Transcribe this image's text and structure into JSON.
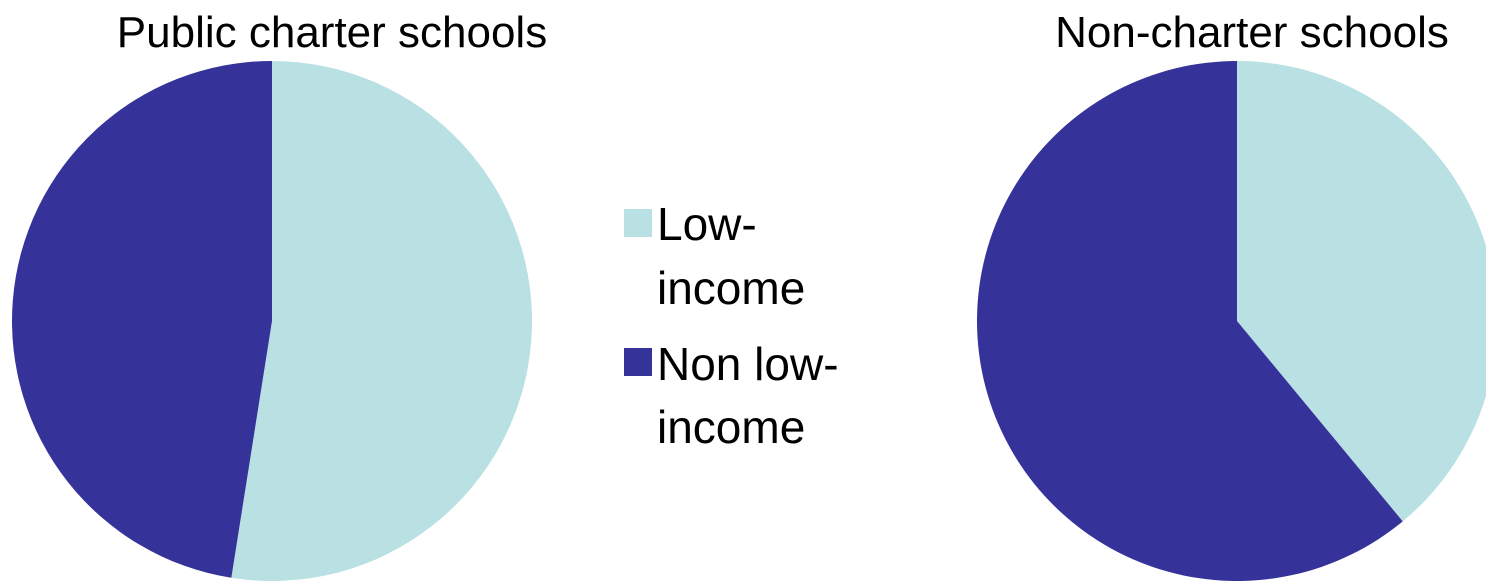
{
  "chart_data": [
    {
      "type": "pie",
      "title": "Public charter schools",
      "slices": [
        {
          "label": "Low-income",
          "value": 52.5,
          "color": "#b9e0e2"
        },
        {
          "label": "Non low-income",
          "value": 47.5,
          "color": "#35339a"
        }
      ],
      "legend": "shared, between charts"
    },
    {
      "type": "pie",
      "title": "Non-charter schools",
      "slices": [
        {
          "label": "Low-income",
          "value": 39,
          "color": "#b9e0e2"
        },
        {
          "label": "Non low-income",
          "value": 61,
          "color": "#35339a"
        }
      ],
      "legend": "shared, between charts"
    }
  ],
  "legend": {
    "items": [
      {
        "lines": [
          "Low-",
          "income"
        ],
        "color": "#b9e0e2"
      },
      {
        "lines": [
          "Non low-",
          "income"
        ],
        "color": "#35339a"
      }
    ]
  }
}
